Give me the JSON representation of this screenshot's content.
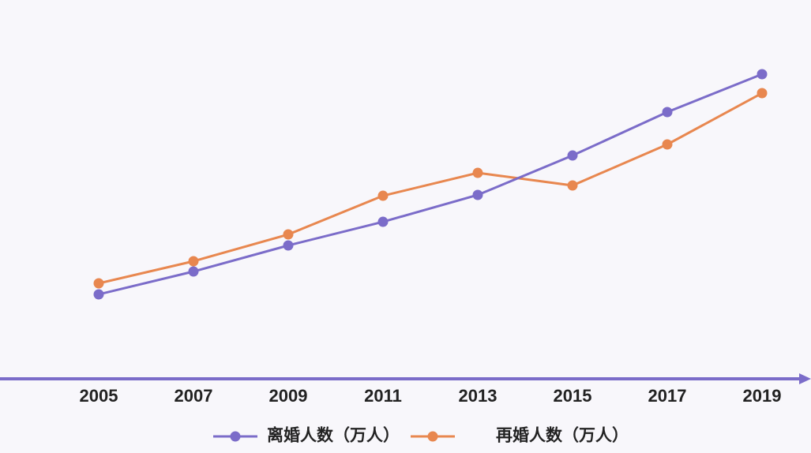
{
  "chart_data": {
    "type": "line",
    "categories": [
      "2005",
      "2007",
      "2009",
      "2011",
      "2013",
      "2015",
      "2017",
      "2019"
    ],
    "series": [
      {
        "name": "离婚人数（万人）",
        "color": "#7b6cc9",
        "values": [
          178.5,
          208.8,
          243.3,
          274.6,
          310.2,
          362.4,
          419.9,
          470.1
        ]
      },
      {
        "name": "再婚人数（万人）",
        "color": "#e8874f",
        "values": [
          193.1,
          222.4,
          257.9,
          309.1,
          339.4,
          322.7,
          377.1,
          445.0
        ]
      }
    ],
    "legend": "bottom"
  }
}
